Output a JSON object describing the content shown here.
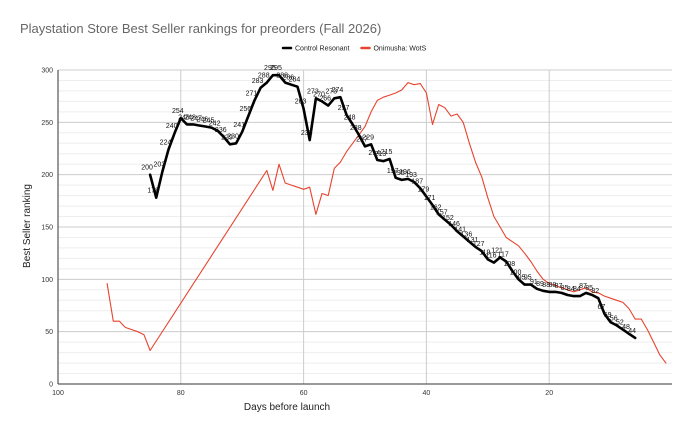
{
  "chart_data": {
    "type": "line",
    "title": "Playstation Store Best Seller rankings for preorders (Fall 2026)",
    "xlabel": "Days before launch",
    "ylabel": "Best Seller ranking",
    "xlim": [
      100,
      0
    ],
    "ylim": [
      0,
      300
    ],
    "x_ticks": [
      "100",
      "80",
      "60",
      "40",
      "20"
    ],
    "x_tick_values": [
      100,
      80,
      60,
      40,
      20
    ],
    "y_ticks": [
      "0",
      "50",
      "100",
      "150",
      "200",
      "250",
      "300"
    ],
    "y_tick_values": [
      0,
      50,
      100,
      150,
      200,
      250,
      300
    ],
    "grid": true,
    "legend_position": "top-right",
    "colors": {
      "Control Resonant": "#000000",
      "Onimusha: WotS": "#e8432e"
    },
    "series": [
      {
        "name": "Control Resonant",
        "color": "#000000",
        "show_labels": true,
        "points": [
          [
            85,
            200
          ],
          [
            84,
            178
          ],
          [
            83,
            203
          ],
          [
            82,
            224
          ],
          [
            81,
            240
          ],
          [
            80,
            254
          ],
          [
            79,
            248
          ],
          [
            78,
            248
          ],
          [
            77,
            247
          ],
          [
            76,
            246
          ],
          [
            75,
            245
          ],
          [
            74,
            242
          ],
          [
            73,
            236
          ],
          [
            72,
            229
          ],
          [
            71,
            230
          ],
          [
            70,
            241
          ],
          [
            69,
            256
          ],
          [
            68,
            271
          ],
          [
            67,
            283
          ],
          [
            66,
            288
          ],
          [
            65,
            295
          ],
          [
            64,
            295
          ],
          [
            63,
            288
          ],
          [
            62,
            286
          ],
          [
            61,
            284
          ],
          [
            60,
            263
          ],
          [
            59,
            233
          ],
          [
            58,
            273
          ],
          [
            57,
            270
          ],
          [
            56,
            266
          ],
          [
            55,
            273
          ],
          [
            54,
            274
          ],
          [
            53,
            257
          ],
          [
            52,
            248
          ],
          [
            51,
            238
          ],
          [
            50,
            227
          ],
          [
            49,
            229
          ],
          [
            48,
            214
          ],
          [
            47,
            213
          ],
          [
            46,
            215
          ],
          [
            45,
            197
          ],
          [
            44,
            195
          ],
          [
            43,
            196
          ],
          [
            42,
            193
          ],
          [
            41,
            187
          ],
          [
            40,
            179
          ],
          [
            39,
            171
          ],
          [
            38,
            162
          ],
          [
            37,
            157
          ],
          [
            36,
            152
          ],
          [
            35,
            146
          ],
          [
            34,
            141
          ],
          [
            33,
            136
          ],
          [
            32,
            131
          ],
          [
            31,
            127
          ],
          [
            30,
            119
          ],
          [
            29,
            116
          ],
          [
            28,
            121
          ],
          [
            27,
            117
          ],
          [
            26,
            108
          ],
          [
            25,
            100
          ],
          [
            24,
            95
          ],
          [
            23,
            95
          ],
          [
            22,
            91
          ],
          [
            21,
            89
          ],
          [
            20,
            88
          ],
          [
            19,
            88
          ],
          [
            18,
            87
          ],
          [
            17,
            85
          ],
          [
            16,
            84
          ],
          [
            15,
            84
          ],
          [
            14,
            87
          ],
          [
            13,
            85
          ],
          [
            12,
            82
          ],
          [
            11,
            67
          ],
          [
            10,
            59
          ],
          [
            9,
            56
          ],
          [
            8,
            52
          ],
          [
            7,
            48
          ],
          [
            6,
            44
          ]
        ]
      },
      {
        "name": "Onimusha: WotS",
        "color": "#e8432e",
        "show_labels": false,
        "points": [
          [
            92,
            96
          ],
          [
            91,
            60
          ],
          [
            90,
            60
          ],
          [
            89,
            54
          ],
          [
            88,
            52
          ],
          [
            87,
            50
          ],
          [
            86,
            47
          ],
          [
            85,
            32
          ],
          [
            66,
            204
          ],
          [
            65,
            185
          ],
          [
            64,
            210
          ],
          [
            63,
            192
          ],
          [
            62,
            190
          ],
          [
            61,
            188
          ],
          [
            60,
            186
          ],
          [
            59,
            188
          ],
          [
            58,
            162
          ],
          [
            57,
            182
          ],
          [
            56,
            180
          ],
          [
            55,
            206
          ],
          [
            54,
            212
          ],
          [
            53,
            222
          ],
          [
            52,
            230
          ],
          [
            51,
            238
          ],
          [
            50,
            246
          ],
          [
            49,
            260
          ],
          [
            48,
            271
          ],
          [
            47,
            274
          ],
          [
            46,
            276
          ],
          [
            45,
            278
          ],
          [
            44,
            281
          ],
          [
            43,
            288
          ],
          [
            42,
            286
          ],
          [
            41,
            287
          ],
          [
            40,
            278
          ],
          [
            39,
            248
          ],
          [
            38,
            267
          ],
          [
            37,
            264
          ],
          [
            36,
            256
          ],
          [
            35,
            258
          ],
          [
            34,
            250
          ],
          [
            33,
            230
          ],
          [
            32,
            212
          ],
          [
            31,
            198
          ],
          [
            30,
            178
          ],
          [
            29,
            160
          ],
          [
            28,
            150
          ],
          [
            27,
            140
          ],
          [
            26,
            136
          ],
          [
            25,
            132
          ],
          [
            24,
            125
          ],
          [
            23,
            117
          ],
          [
            22,
            108
          ],
          [
            21,
            100
          ],
          [
            20,
            96
          ],
          [
            19,
            94
          ],
          [
            18,
            92
          ],
          [
            17,
            90
          ],
          [
            16,
            88
          ],
          [
            15,
            90
          ],
          [
            14,
            92
          ],
          [
            13,
            88
          ],
          [
            12,
            87
          ],
          [
            11,
            84
          ],
          [
            10,
            82
          ],
          [
            9,
            80
          ],
          [
            8,
            78
          ],
          [
            7,
            72
          ],
          [
            6,
            62
          ],
          [
            5,
            62
          ],
          [
            4,
            52
          ],
          [
            3,
            40
          ],
          [
            2,
            28
          ],
          [
            1,
            20
          ]
        ]
      }
    ]
  }
}
